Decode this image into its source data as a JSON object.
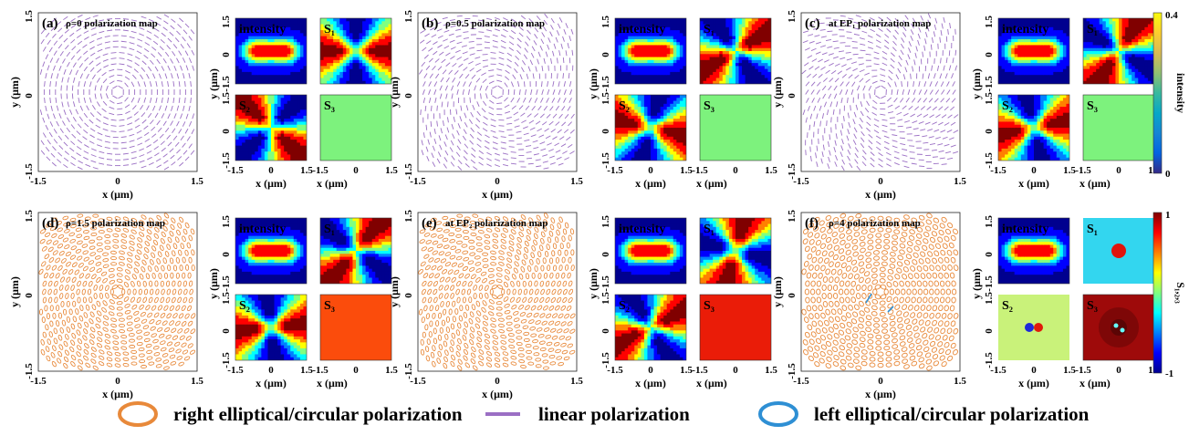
{
  "panels": [
    {
      "id": "a",
      "title": "ρ=0 polarization map",
      "mode": "linear",
      "r": 0,
      "s3": "#7df27d",
      "s3_label": "S₃",
      "tilt": 0.0,
      "scale": 1.0
    },
    {
      "id": "b",
      "title": "ρ=0.5 polarization map",
      "mode": "linear",
      "r": 0,
      "s3": "#7df27d",
      "s3_label": "S₃",
      "tilt": 0.35,
      "scale": 1.0
    },
    {
      "id": "c",
      "title": "at EP₁ polarization map",
      "mode": "linear",
      "r": 0,
      "s3": "#7df27d",
      "s3_label": "S₃",
      "tilt": 0.6,
      "scale": 1.0
    },
    {
      "id": "d",
      "title": "ρ=1.5 polarization map",
      "mode": "ellipse",
      "r": 1,
      "s3": "#fb4c0c",
      "s3_label": "S₃",
      "tilt": 0.3,
      "scale": 1.0
    },
    {
      "id": "e",
      "title": "at EP₂ polarization map",
      "mode": "ellipse",
      "r": 1,
      "s3": "#ea1c08",
      "s3_label": "S₃",
      "tilt": 0.5,
      "scale": 1.0
    },
    {
      "id": "f",
      "title": "ρ=4 polarization map",
      "mode": "circle",
      "r": 1,
      "s3": "#9e0a0a",
      "s3_label": "S₃",
      "tilt": 0.0,
      "scale": 1.0
    }
  ],
  "labels": {
    "intensity": "intensity",
    "s1": "S₁",
    "s2": "S₂",
    "xaxis": "x (μm)",
    "yaxis": "y (μm)",
    "ticks_big": [
      "-1.5",
      "0",
      "1.5"
    ],
    "ticks_small": [
      "-1.5",
      "0",
      "1.5"
    ]
  },
  "colorbars": [
    {
      "label": "intensity",
      "ticks": [
        "0.4",
        "0"
      ]
    },
    {
      "label": "S₁,₂,₃",
      "ticks": [
        "1",
        "-1"
      ]
    }
  ],
  "legend": [
    {
      "label": "right elliptical/circular polarization",
      "kind": "ellipse",
      "color": "#e8893a"
    },
    {
      "label": "linear polarization",
      "kind": "line",
      "color": "#9b6fc4"
    },
    {
      "label": "left elliptical/circular polarization",
      "kind": "ellipse",
      "color": "#2e8fd4"
    }
  ],
  "colors": {
    "linear": "#9b6fc4",
    "right": "#e8893a",
    "left": "#2e8fd4"
  }
}
